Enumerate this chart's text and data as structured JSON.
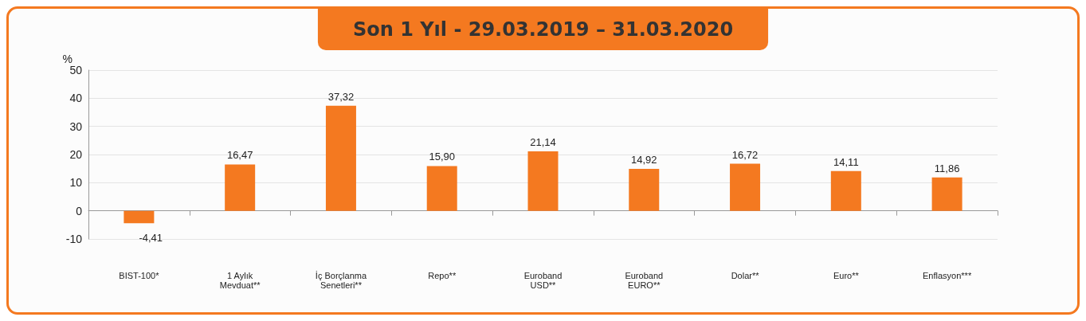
{
  "chart_data": {
    "type": "bar",
    "title": "Son 1 Yıl - 29.03.2019 – 31.03.2020",
    "ylabel": "%",
    "categories": [
      "BIST-100*",
      "1 Aylık\nMevduat**",
      "İç Borçlanma\nSenetleri**",
      "Repo**",
      "Euroband\nUSD**",
      "Euroband\nEURO**",
      "Dolar**",
      "Euro**",
      "Enflasyon***"
    ],
    "values": [
      -4.41,
      16.47,
      37.32,
      15.9,
      21.14,
      14.92,
      16.72,
      14.11,
      11.86
    ],
    "value_labels": [
      "-4,41",
      "16,47",
      "37,32",
      "15,90",
      "21,14",
      "14,92",
      "16,72",
      "14,11",
      "11,86"
    ],
    "color": "#f47920",
    "ylim": [
      -10,
      50
    ],
    "yticks": [
      -10,
      0,
      10,
      20,
      30,
      40,
      50
    ],
    "grid": "y"
  }
}
